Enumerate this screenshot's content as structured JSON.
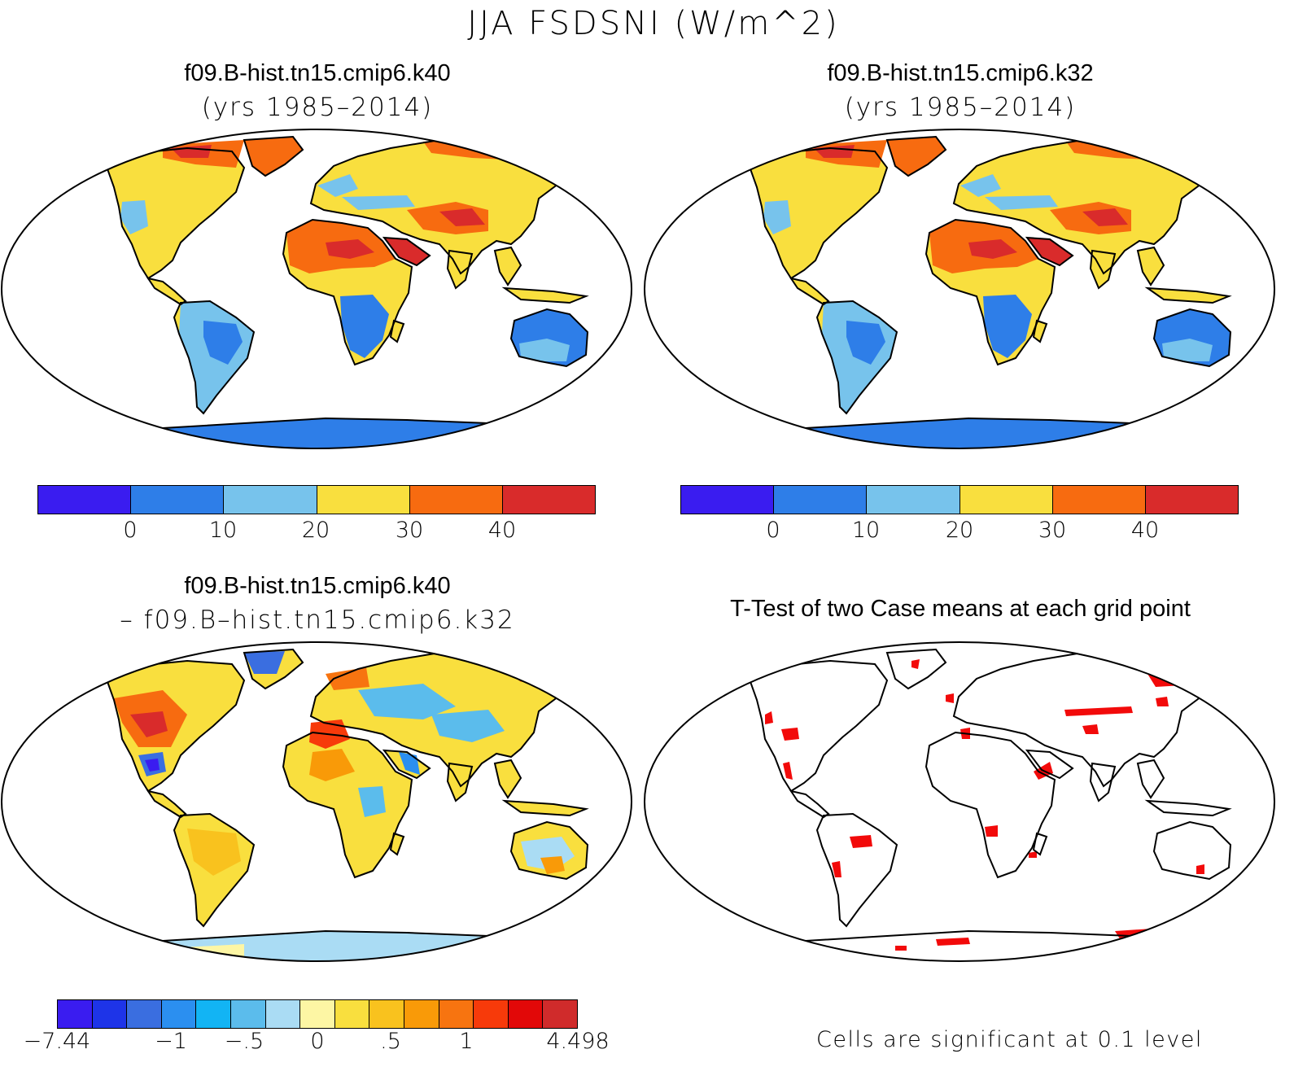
{
  "title": "JJA FSDSNI (W/m^2)",
  "panels": {
    "top_left": {
      "title": "f09.B-hist.tn15.cmip6.k40",
      "subtitle": "(yrs 1985–2014)"
    },
    "top_right": {
      "title": "f09.B-hist.tn15.cmip6.k32",
      "subtitle": "(yrs 1985–2014)"
    },
    "bottom_left": {
      "title": "f09.B-hist.tn15.cmip6.k40",
      "subtitle": "– f09.B–hist.tn15.cmip6.k32"
    },
    "bottom_right": {
      "title": "T-Test of two Case means at each grid point",
      "note": "Cells are significant at 0.1 level"
    }
  },
  "colorbar_abs": {
    "colors": [
      "#3a1cf0",
      "#2e7ee8",
      "#77c3ec",
      "#f9df3e",
      "#f76b10",
      "#d92b2b"
    ],
    "labels": [
      "0",
      "10",
      "20",
      "30",
      "40"
    ]
  },
  "colorbar_diff": {
    "colors": [
      "#3a1cf0",
      "#1e34e8",
      "#3a6ee0",
      "#2b8ff0",
      "#12b4f4",
      "#5bbcec",
      "#aadcf4",
      "#fdf6a4",
      "#f9df3e",
      "#f9c21e",
      "#f99a08",
      "#f77410",
      "#f73a0a",
      "#e20808",
      "#d02b2b"
    ],
    "labels": [
      "−7.44",
      "−1",
      "−.5",
      "0",
      ".5",
      "1",
      "4.498"
    ]
  },
  "chart_data": {
    "type": "heatmap",
    "title": "JJA FSDSNI (W/m^2)",
    "panels": [
      {
        "name": "f09.B-hist.tn15.cmip6.k40",
        "period": "(yrs 1985–2014)",
        "levels": [
          0,
          10,
          20,
          30,
          40
        ]
      },
      {
        "name": "f09.B-hist.tn15.cmip6.k32",
        "period": "(yrs 1985–2014)",
        "levels": [
          0,
          10,
          20,
          30,
          40
        ]
      },
      {
        "name": "f09.B-hist.tn15.cmip6.k40 – f09.B–hist.tn15.cmip6.k32",
        "levels": [
          -7.44,
          -1,
          -0.5,
          0,
          0.5,
          1,
          4.498
        ]
      },
      {
        "name": "T-Test of two Case means at each grid point",
        "significance": 0.1
      }
    ]
  }
}
